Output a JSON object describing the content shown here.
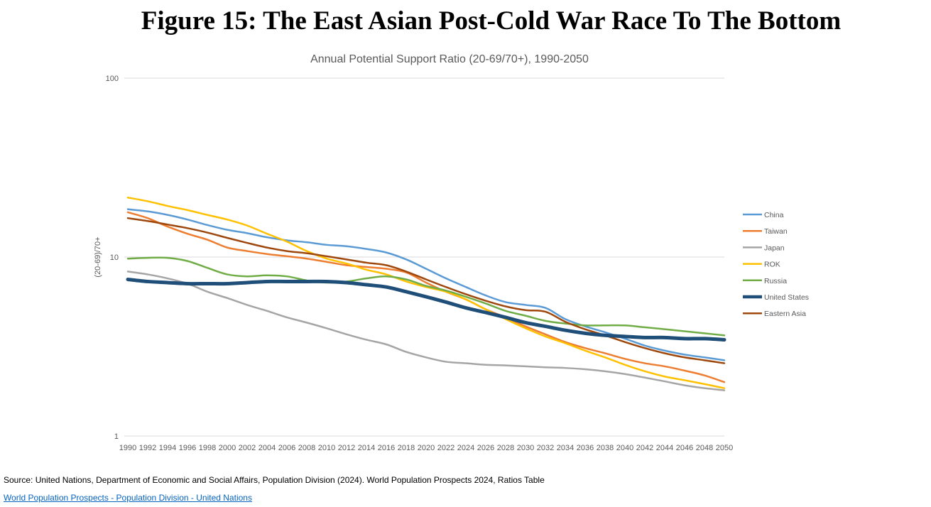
{
  "figure_title": "Figure 15: The East Asian Post-Cold War Race To The Bottom",
  "source_text": "Source: United Nations, Department of Economic and Social Affairs, Population Division (2024). World Population Prospects 2024, Ratios Table",
  "source_link": "World Population Prospects - Population Division - United Nations",
  "chart_data": {
    "type": "line",
    "title": "Annual Potential Support Ratio (20-69/70+), 1990-2050",
    "xlabel": "",
    "ylabel": "(20-69)/70+",
    "yscale": "log",
    "ylim": [
      1,
      100
    ],
    "yticks": [
      1,
      10,
      100
    ],
    "ytick_labels": [
      "1",
      "10",
      "100"
    ],
    "xlim": [
      1990,
      2050
    ],
    "xticks": [
      1990,
      1992,
      1994,
      1996,
      1998,
      2000,
      2002,
      2004,
      2006,
      2008,
      2010,
      2012,
      2014,
      2016,
      2018,
      2020,
      2022,
      2024,
      2026,
      2028,
      2030,
      2032,
      2034,
      2036,
      2038,
      2040,
      2042,
      2044,
      2046,
      2048,
      2050
    ],
    "xtick_labels": [
      "1990",
      "1992",
      "1994",
      "1996",
      "1998",
      "2000",
      "2002",
      "2004",
      "2006",
      "2008",
      "2010",
      "2012",
      "2014",
      "2016",
      "2018",
      "2020",
      "2022",
      "2024",
      "2026",
      "2028",
      "2030",
      "2032",
      "2034",
      "2036",
      "2038",
      "2040",
      "2042",
      "2044",
      "2046",
      "2048",
      "2050"
    ],
    "grid": true,
    "legend_position": "right",
    "x": [
      1990,
      1992,
      1994,
      1996,
      1998,
      2000,
      2002,
      2004,
      2006,
      2008,
      2010,
      2012,
      2014,
      2016,
      2018,
      2020,
      2022,
      2024,
      2026,
      2028,
      2030,
      2032,
      2034,
      2036,
      2038,
      2040,
      2042,
      2044,
      2046,
      2048,
      2050
    ],
    "series": [
      {
        "name": "China",
        "color": "#5b9bd5",
        "width": 2.5,
        "values": [
          18.5,
          18.0,
          17.2,
          16.2,
          15.1,
          14.2,
          13.6,
          12.9,
          12.4,
          12.1,
          11.7,
          11.5,
          11.1,
          10.6,
          9.7,
          8.6,
          7.6,
          6.8,
          6.1,
          5.6,
          5.4,
          5.2,
          4.5,
          4.1,
          3.8,
          3.5,
          3.2,
          3.0,
          2.85,
          2.75,
          2.65
        ]
      },
      {
        "name": "Taiwan",
        "color": "#ed7d31",
        "width": 2.5,
        "values": [
          17.8,
          16.5,
          14.8,
          13.5,
          12.5,
          11.3,
          10.8,
          10.4,
          10.1,
          9.8,
          9.4,
          9.0,
          8.8,
          8.6,
          8.2,
          7.2,
          6.4,
          5.8,
          5.1,
          4.6,
          4.1,
          3.7,
          3.35,
          3.1,
          2.9,
          2.7,
          2.55,
          2.45,
          2.32,
          2.18,
          2.0
        ]
      },
      {
        "name": "Japan",
        "color": "#a5a5a5",
        "width": 2.5,
        "values": [
          8.3,
          8.0,
          7.6,
          7.1,
          6.4,
          5.9,
          5.4,
          5.0,
          4.6,
          4.3,
          4.0,
          3.7,
          3.45,
          3.25,
          2.95,
          2.75,
          2.6,
          2.55,
          2.5,
          2.48,
          2.45,
          2.42,
          2.4,
          2.36,
          2.3,
          2.22,
          2.12,
          2.02,
          1.92,
          1.85,
          1.8
        ]
      },
      {
        "name": "ROK",
        "color": "#ffc000",
        "width": 2.5,
        "values": [
          21.5,
          20.5,
          19.3,
          18.3,
          17.2,
          16.2,
          15.0,
          13.5,
          12.2,
          10.8,
          9.8,
          9.2,
          8.5,
          8.0,
          7.3,
          6.8,
          6.4,
          5.8,
          5.1,
          4.5,
          4.0,
          3.6,
          3.3,
          3.0,
          2.75,
          2.5,
          2.3,
          2.15,
          2.05,
          1.95,
          1.85
        ]
      },
      {
        "name": "Russia",
        "color": "#70ad47",
        "width": 2.5,
        "values": [
          9.8,
          9.9,
          9.9,
          9.5,
          8.7,
          8.0,
          7.8,
          7.9,
          7.8,
          7.4,
          7.2,
          7.3,
          7.6,
          7.8,
          7.5,
          6.9,
          6.5,
          6.0,
          5.5,
          5.0,
          4.7,
          4.4,
          4.25,
          4.15,
          4.15,
          4.15,
          4.05,
          3.95,
          3.85,
          3.75,
          3.65
        ]
      },
      {
        "name": "United States",
        "color": "#1f4e79",
        "width": 5,
        "values": [
          7.5,
          7.3,
          7.2,
          7.1,
          7.1,
          7.1,
          7.2,
          7.3,
          7.3,
          7.3,
          7.3,
          7.2,
          7.0,
          6.8,
          6.4,
          6.0,
          5.6,
          5.2,
          4.9,
          4.6,
          4.3,
          4.1,
          3.9,
          3.75,
          3.65,
          3.6,
          3.55,
          3.55,
          3.5,
          3.5,
          3.45
        ]
      },
      {
        "name": "Eastern Asia",
        "color": "#9e480e",
        "width": 2.5,
        "values": [
          16.5,
          15.9,
          15.2,
          14.5,
          13.7,
          12.8,
          12.0,
          11.3,
          10.8,
          10.5,
          10.1,
          9.7,
          9.3,
          9.0,
          8.3,
          7.5,
          6.8,
          6.2,
          5.7,
          5.3,
          5.05,
          4.95,
          4.35,
          3.95,
          3.65,
          3.35,
          3.1,
          2.9,
          2.75,
          2.65,
          2.55
        ]
      }
    ]
  }
}
